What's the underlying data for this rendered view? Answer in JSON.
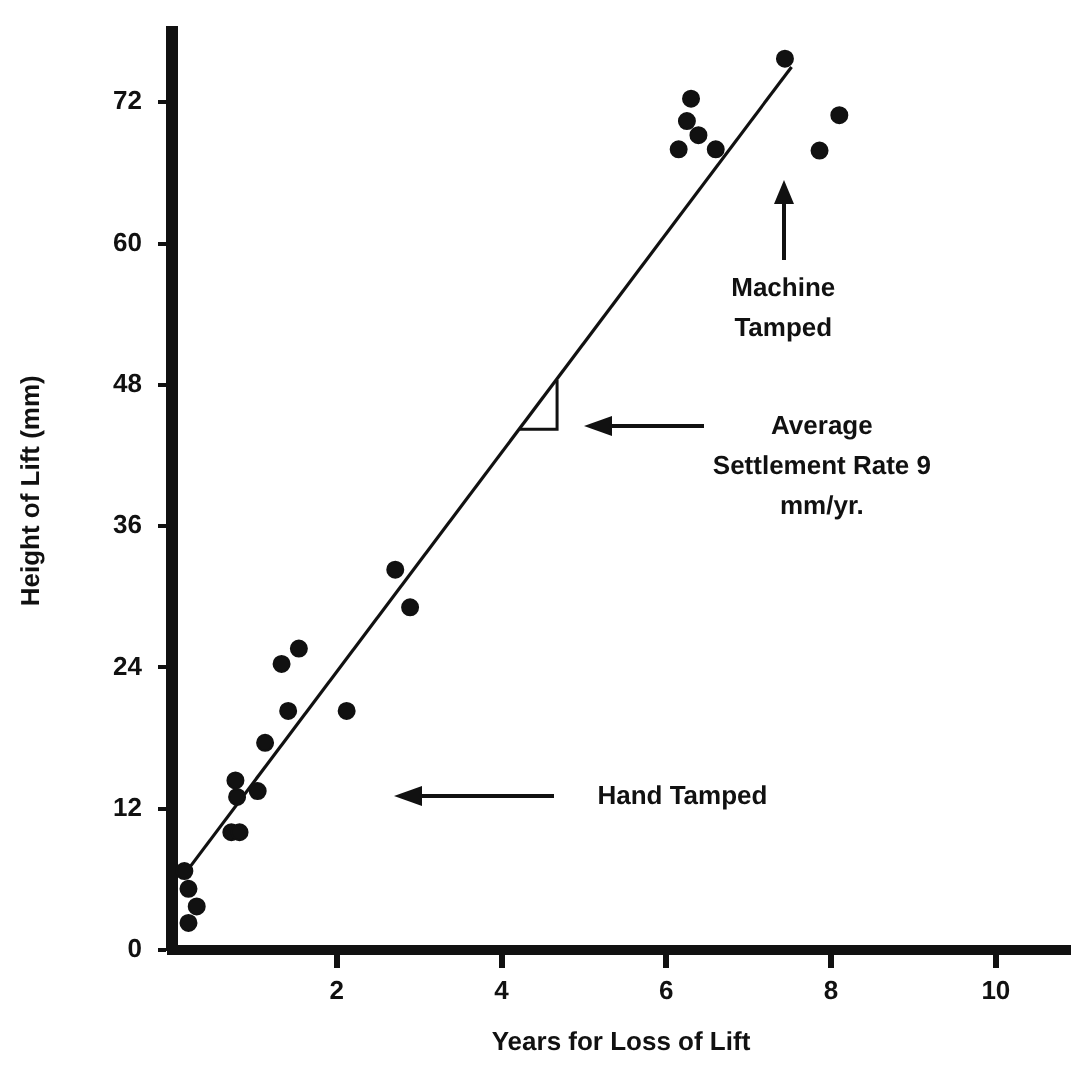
{
  "chart_data": {
    "type": "scatter",
    "xlabel": "Years for Loss of Lift",
    "ylabel": "Height of Lift (mm)",
    "xlim": [
      0,
      10.9
    ],
    "xticks": [
      2,
      4,
      6,
      8,
      10
    ],
    "ylim": [
      0,
      78
    ],
    "yticks": [
      0,
      12,
      24,
      36,
      48,
      60,
      72
    ],
    "grid": false,
    "legend": false,
    "marker": "circle",
    "series": [
      {
        "color": "#111111",
        "x": [
          0.15,
          0.2,
          0.3,
          0.2,
          0.72,
          0.82,
          0.77,
          0.79,
          1.04,
          1.13,
          1.41,
          1.33,
          1.54,
          2.12,
          2.71,
          2.89,
          7.44,
          6.3,
          6.25,
          6.39,
          6.15,
          6.6,
          8.1,
          7.86
        ],
        "values": [
          6.7,
          5.2,
          3.7,
          2.3,
          10,
          10,
          14.4,
          13,
          13.5,
          17.6,
          20.3,
          24.3,
          25.6,
          20.3,
          32.3,
          29.1,
          75.7,
          72.3,
          70.4,
          69.2,
          68,
          68,
          70.9,
          67.9
        ]
      },
      {
        "type": "line",
        "color": "#111111",
        "marker": "none",
        "x": [
          0.18,
          7.52
        ],
        "values": [
          6.7,
          75
        ]
      }
    ],
    "annotations": [
      "Machine Tamped",
      "Average Settlement Rate 9 mm/yr.",
      "Hand Tamped"
    ]
  }
}
